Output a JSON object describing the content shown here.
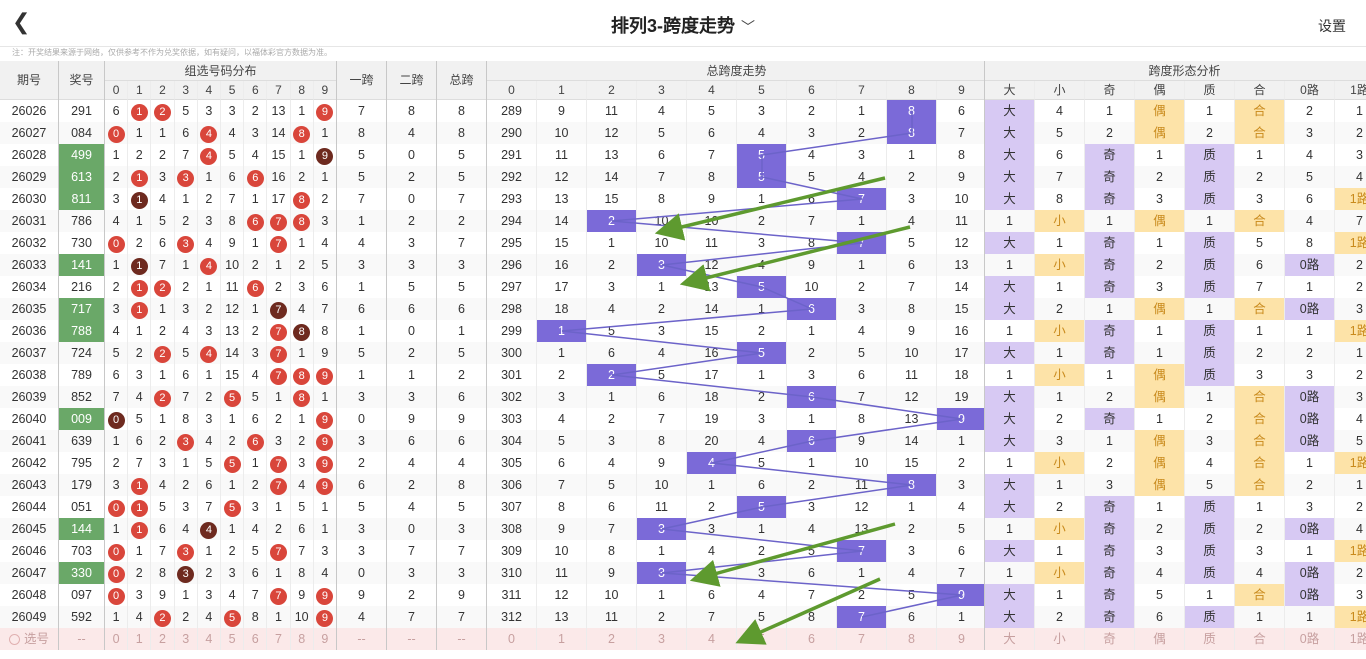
{
  "header": {
    "back_icon": "back-chevron-icon",
    "title": "排列3-跨度走势",
    "title_chevron": "﹀",
    "settings_label": "设置"
  },
  "note": "注：开奖结果来源于网络，仅供参考不作为兑奖依据，如有疑问，以福体彩官方数据为准。",
  "table": {
    "period_label": "期号",
    "award_label": "奖号",
    "digits_group_label": "组选号码分布",
    "digits_header": [
      "0",
      "1",
      "2",
      "3",
      "4",
      "5",
      "6",
      "7",
      "8",
      "9"
    ],
    "kua1_label": "一跨",
    "kua2_label": "二跨",
    "total_label": "总跨",
    "trend_group_label": "总跨度走势",
    "trend_header": [
      "0",
      "1",
      "2",
      "3",
      "4",
      "5",
      "6",
      "7",
      "8",
      "9"
    ],
    "shape_group_label": "跨度形态分析",
    "shape_header": [
      "大",
      "小",
      "奇",
      "偶",
      "质",
      "合",
      "0路",
      "1路"
    ],
    "select_label": "选号",
    "select_dash": "--",
    "select_digits": [
      "0",
      "1",
      "2",
      "3",
      "4",
      "5",
      "6",
      "7",
      "8",
      "9"
    ],
    "select_trend": [
      "0",
      "1",
      "2",
      "3",
      "4",
      "5",
      "6",
      "7",
      "8",
      "9"
    ],
    "select_shape": [
      "大",
      "小",
      "奇",
      "偶",
      "质",
      "合",
      "0路",
      "1路"
    ],
    "rows": [
      {
        "period": "26026",
        "award": "291",
        "award_hl": false,
        "digits": [
          "6",
          "1",
          "2",
          "5",
          "3",
          "3",
          "2",
          "13",
          "1",
          "9"
        ],
        "balls": [
          1,
          2,
          9
        ],
        "ball_dark": [],
        "k1": "7",
        "k2": "8",
        "kt": "8",
        "trend": [
          "289",
          "9",
          "11",
          "4",
          "5",
          "3",
          "2",
          "1",
          "8",
          "6"
        ],
        "shape": [
          "大",
          "4",
          "1",
          "偶",
          "1",
          "合",
          "2",
          "1"
        ]
      },
      {
        "period": "26027",
        "award": "084",
        "award_hl": false,
        "digits": [
          "0",
          "1",
          "1",
          "6",
          "4",
          "4",
          "3",
          "14",
          "8",
          "1"
        ],
        "balls": [
          0,
          4,
          8
        ],
        "ball_dark": [],
        "k1": "8",
        "k2": "4",
        "kt": "8",
        "trend": [
          "290",
          "10",
          "12",
          "5",
          "6",
          "4",
          "3",
          "2",
          "8",
          "7"
        ],
        "shape": [
          "大",
          "5",
          "2",
          "偶",
          "2",
          "合",
          "3",
          "2"
        ]
      },
      {
        "period": "26028",
        "award": "499",
        "award_hl": true,
        "digits": [
          "1",
          "2",
          "2",
          "7",
          "4",
          "5",
          "4",
          "15",
          "1",
          "9"
        ],
        "balls": [
          4,
          9
        ],
        "ball_dark": [
          9
        ],
        "k1": "5",
        "k2": "0",
        "kt": "5",
        "trend": [
          "291",
          "11",
          "13",
          "6",
          "7",
          "5",
          "4",
          "3",
          "1",
          "8"
        ],
        "shape": [
          "大",
          "6",
          "奇",
          "1",
          "质",
          "1",
          "4",
          "3"
        ]
      },
      {
        "period": "26029",
        "award": "613",
        "award_hl": true,
        "digits": [
          "2",
          "1",
          "3",
          "3",
          "1",
          "6",
          "6",
          "16",
          "2",
          "1"
        ],
        "balls": [
          1,
          3,
          6
        ],
        "ball_dark": [],
        "k1": "5",
        "k2": "2",
        "kt": "5",
        "trend": [
          "292",
          "12",
          "14",
          "7",
          "8",
          "5",
          "5",
          "4",
          "2",
          "9"
        ],
        "shape": [
          "大",
          "7",
          "奇",
          "2",
          "质",
          "2",
          "5",
          "4"
        ]
      },
      {
        "period": "26030",
        "award": "811",
        "award_hl": true,
        "digits": [
          "3",
          "1",
          "4",
          "1",
          "2",
          "7",
          "1",
          "17",
          "8",
          "2"
        ],
        "balls": [
          1,
          8
        ],
        "ball_dark": [
          1
        ],
        "k1": "7",
        "k2": "0",
        "kt": "7",
        "trend": [
          "293",
          "13",
          "15",
          "8",
          "9",
          "1",
          "6",
          "7",
          "3",
          "10"
        ],
        "shape": [
          "大",
          "8",
          "奇",
          "3",
          "质",
          "3",
          "6",
          "1路"
        ]
      },
      {
        "period": "26031",
        "award": "786",
        "award_hl": false,
        "digits": [
          "4",
          "1",
          "5",
          "2",
          "3",
          "8",
          "6",
          "7",
          "8",
          "3"
        ],
        "balls": [
          6,
          7,
          8
        ],
        "ball_dark": [],
        "k1": "1",
        "k2": "2",
        "kt": "2",
        "trend": [
          "294",
          "14",
          "2",
          "10",
          "10",
          "2",
          "7",
          "1",
          "4",
          "11"
        ],
        "shape": [
          "1",
          "小",
          "1",
          "偶",
          "1",
          "合",
          "4",
          "7"
        ]
      },
      {
        "period": "26032",
        "award": "730",
        "award_hl": false,
        "digits": [
          "0",
          "2",
          "6",
          "3",
          "4",
          "9",
          "1",
          "7",
          "1",
          "4"
        ],
        "balls": [
          0,
          3,
          7
        ],
        "ball_dark": [],
        "k1": "4",
        "k2": "3",
        "kt": "7",
        "trend": [
          "295",
          "15",
          "1",
          "10",
          "11",
          "3",
          "8",
          "7",
          "5",
          "12"
        ],
        "shape": [
          "大",
          "1",
          "奇",
          "1",
          "质",
          "5",
          "8",
          "1路"
        ]
      },
      {
        "period": "26033",
        "award": "141",
        "award_hl": true,
        "digits": [
          "1",
          "1",
          "7",
          "1",
          "4",
          "10",
          "2",
          "1",
          "2",
          "5"
        ],
        "balls": [
          1,
          4
        ],
        "ball_dark": [
          1
        ],
        "k1": "3",
        "k2": "3",
        "kt": "3",
        "trend": [
          "296",
          "16",
          "2",
          "3",
          "12",
          "4",
          "9",
          "1",
          "6",
          "13"
        ],
        "shape": [
          "1",
          "小",
          "奇",
          "2",
          "质",
          "6",
          "0路",
          "2"
        ]
      },
      {
        "period": "26034",
        "award": "216",
        "award_hl": false,
        "digits": [
          "2",
          "1",
          "2",
          "2",
          "1",
          "11",
          "6",
          "2",
          "3",
          "6"
        ],
        "balls": [
          1,
          2,
          6
        ],
        "ball_dark": [],
        "k1": "1",
        "k2": "5",
        "kt": "5",
        "trend": [
          "297",
          "17",
          "3",
          "1",
          "13",
          "5",
          "10",
          "2",
          "7",
          "14"
        ],
        "shape": [
          "大",
          "1",
          "奇",
          "3",
          "质",
          "7",
          "1",
          "2"
        ]
      },
      {
        "period": "26035",
        "award": "717",
        "award_hl": true,
        "digits": [
          "3",
          "1",
          "1",
          "3",
          "2",
          "12",
          "1",
          "7",
          "4",
          "7"
        ],
        "balls": [
          1,
          7
        ],
        "ball_dark": [
          7
        ],
        "k1": "6",
        "k2": "6",
        "kt": "6",
        "trend": [
          "298",
          "18",
          "4",
          "2",
          "14",
          "1",
          "6",
          "3",
          "8",
          "15"
        ],
        "shape": [
          "大",
          "2",
          "1",
          "偶",
          "1",
          "合",
          "0路",
          "3"
        ]
      },
      {
        "period": "26036",
        "award": "788",
        "award_hl": true,
        "digits": [
          "4",
          "1",
          "2",
          "4",
          "3",
          "13",
          "2",
          "7",
          "8",
          "8"
        ],
        "balls": [
          7,
          8
        ],
        "ball_dark": [
          8
        ],
        "k1": "1",
        "k2": "0",
        "kt": "1",
        "trend": [
          "299",
          "1",
          "5",
          "3",
          "15",
          "2",
          "1",
          "4",
          "9",
          "16"
        ],
        "shape": [
          "1",
          "小",
          "奇",
          "1",
          "质",
          "1",
          "1",
          "1路"
        ]
      },
      {
        "period": "26037",
        "award": "724",
        "award_hl": false,
        "digits": [
          "5",
          "2",
          "2",
          "5",
          "4",
          "14",
          "3",
          "7",
          "1",
          "9"
        ],
        "balls": [
          2,
          4,
          7
        ],
        "ball_dark": [],
        "k1": "5",
        "k2": "2",
        "kt": "5",
        "trend": [
          "300",
          "1",
          "6",
          "4",
          "16",
          "5",
          "2",
          "5",
          "10",
          "17"
        ],
        "shape": [
          "大",
          "1",
          "奇",
          "1",
          "质",
          "2",
          "2",
          "1"
        ]
      },
      {
        "period": "26038",
        "award": "789",
        "award_hl": false,
        "digits": [
          "6",
          "3",
          "1",
          "6",
          "1",
          "15",
          "4",
          "7",
          "8",
          "9"
        ],
        "balls": [
          7,
          8,
          9
        ],
        "ball_dark": [],
        "k1": "1",
        "k2": "1",
        "kt": "2",
        "trend": [
          "301",
          "2",
          "2",
          "5",
          "17",
          "1",
          "3",
          "6",
          "11",
          "18"
        ],
        "shape": [
          "1",
          "小",
          "1",
          "偶",
          "质",
          "3",
          "3",
          "2"
        ]
      },
      {
        "period": "26039",
        "award": "852",
        "award_hl": false,
        "digits": [
          "7",
          "4",
          "2",
          "7",
          "2",
          "5",
          "5",
          "1",
          "8",
          "1"
        ],
        "balls": [
          2,
          5,
          8
        ],
        "ball_dark": [],
        "k1": "3",
        "k2": "3",
        "kt": "6",
        "trend": [
          "302",
          "3",
          "1",
          "6",
          "18",
          "2",
          "6",
          "7",
          "12",
          "19"
        ],
        "shape": [
          "大",
          "1",
          "2",
          "偶",
          "1",
          "合",
          "0路",
          "3"
        ]
      },
      {
        "period": "26040",
        "award": "009",
        "award_hl": true,
        "digits": [
          "0",
          "5",
          "1",
          "8",
          "3",
          "1",
          "6",
          "2",
          "1",
          "9"
        ],
        "balls": [
          0,
          9
        ],
        "ball_dark": [
          0
        ],
        "k1": "0",
        "k2": "9",
        "kt": "9",
        "trend": [
          "303",
          "4",
          "2",
          "7",
          "19",
          "3",
          "1",
          "8",
          "13",
          "9"
        ],
        "shape": [
          "大",
          "2",
          "奇",
          "1",
          "2",
          "合",
          "0路",
          "4"
        ]
      },
      {
        "period": "26041",
        "award": "639",
        "award_hl": false,
        "digits": [
          "1",
          "6",
          "2",
          "3",
          "4",
          "2",
          "6",
          "3",
          "2",
          "9"
        ],
        "balls": [
          3,
          6,
          9
        ],
        "ball_dark": [],
        "k1": "3",
        "k2": "6",
        "kt": "6",
        "trend": [
          "304",
          "5",
          "3",
          "8",
          "20",
          "4",
          "6",
          "9",
          "14",
          "1"
        ],
        "shape": [
          "大",
          "3",
          "1",
          "偶",
          "3",
          "合",
          "0路",
          "5"
        ]
      },
      {
        "period": "26042",
        "award": "795",
        "award_hl": false,
        "digits": [
          "2",
          "7",
          "3",
          "1",
          "5",
          "5",
          "1",
          "7",
          "3",
          "9"
        ],
        "balls": [
          5,
          7,
          9
        ],
        "ball_dark": [],
        "k1": "2",
        "k2": "4",
        "kt": "4",
        "trend": [
          "305",
          "6",
          "4",
          "9",
          "4",
          "5",
          "1",
          "10",
          "15",
          "2"
        ],
        "shape": [
          "1",
          "小",
          "2",
          "偶",
          "4",
          "合",
          "1",
          "1路"
        ]
      },
      {
        "period": "26043",
        "award": "179",
        "award_hl": false,
        "digits": [
          "3",
          "1",
          "4",
          "2",
          "6",
          "1",
          "2",
          "7",
          "4",
          "9"
        ],
        "balls": [
          1,
          7,
          9
        ],
        "ball_dark": [],
        "k1": "6",
        "k2": "2",
        "kt": "8",
        "trend": [
          "306",
          "7",
          "5",
          "10",
          "1",
          "6",
          "2",
          "11",
          "8",
          "3"
        ],
        "shape": [
          "大",
          "1",
          "3",
          "偶",
          "5",
          "合",
          "2",
          "1"
        ]
      },
      {
        "period": "26044",
        "award": "051",
        "award_hl": false,
        "digits": [
          "0",
          "1",
          "5",
          "3",
          "7",
          "5",
          "3",
          "1",
          "5",
          "1"
        ],
        "balls": [
          0,
          1,
          5
        ],
        "ball_dark": [],
        "k1": "5",
        "k2": "4",
        "kt": "5",
        "trend": [
          "307",
          "8",
          "6",
          "11",
          "2",
          "5",
          "3",
          "12",
          "1",
          "4"
        ],
        "shape": [
          "大",
          "2",
          "奇",
          "1",
          "质",
          "1",
          "3",
          "2"
        ]
      },
      {
        "period": "26045",
        "award": "144",
        "award_hl": true,
        "digits": [
          "1",
          "1",
          "6",
          "4",
          "4",
          "1",
          "4",
          "2",
          "6",
          "1"
        ],
        "balls": [
          1,
          4
        ],
        "ball_dark": [
          4
        ],
        "k1": "3",
        "k2": "0",
        "kt": "3",
        "trend": [
          "308",
          "9",
          "7",
          "3",
          "3",
          "1",
          "4",
          "13",
          "2",
          "5"
        ],
        "shape": [
          "1",
          "小",
          "奇",
          "2",
          "质",
          "2",
          "0路",
          "4"
        ]
      },
      {
        "period": "26046",
        "award": "703",
        "award_hl": false,
        "digits": [
          "0",
          "1",
          "7",
          "3",
          "1",
          "2",
          "5",
          "7",
          "7",
          "3"
        ],
        "balls": [
          0,
          3,
          7
        ],
        "ball_dark": [],
        "k1": "3",
        "k2": "7",
        "kt": "7",
        "trend": [
          "309",
          "10",
          "8",
          "1",
          "4",
          "2",
          "5",
          "7",
          "3",
          "6"
        ],
        "shape": [
          "大",
          "1",
          "奇",
          "3",
          "质",
          "3",
          "1",
          "1路"
        ]
      },
      {
        "period": "26047",
        "award": "330",
        "award_hl": true,
        "digits": [
          "0",
          "2",
          "8",
          "3",
          "2",
          "3",
          "6",
          "1",
          "8",
          "4"
        ],
        "balls": [
          0,
          3
        ],
        "ball_dark": [
          3
        ],
        "k1": "0",
        "k2": "3",
        "kt": "3",
        "trend": [
          "310",
          "11",
          "9",
          "3",
          "5",
          "3",
          "6",
          "1",
          "4",
          "7"
        ],
        "shape": [
          "1",
          "小",
          "奇",
          "4",
          "质",
          "4",
          "0路",
          "2"
        ]
      },
      {
        "period": "26048",
        "award": "097",
        "award_hl": false,
        "digits": [
          "0",
          "3",
          "9",
          "1",
          "3",
          "4",
          "7",
          "7",
          "9",
          "9"
        ],
        "balls": [
          0,
          7,
          9
        ],
        "ball_dark": [],
        "k1": "9",
        "k2": "2",
        "kt": "9",
        "trend": [
          "311",
          "12",
          "10",
          "1",
          "6",
          "4",
          "7",
          "2",
          "5",
          "9"
        ],
        "shape": [
          "大",
          "1",
          "奇",
          "5",
          "1",
          "合",
          "0路",
          "3"
        ]
      },
      {
        "period": "26049",
        "award": "592",
        "award_hl": false,
        "digits": [
          "1",
          "4",
          "2",
          "2",
          "4",
          "5",
          "8",
          "1",
          "10",
          "9"
        ],
        "balls": [
          2,
          5,
          9
        ],
        "ball_dark": [],
        "k1": "4",
        "k2": "7",
        "kt": "7",
        "trend": [
          "312",
          "13",
          "11",
          "2",
          "7",
          "5",
          "8",
          "7",
          "6",
          "1"
        ],
        "shape": [
          "大",
          "2",
          "奇",
          "6",
          "质",
          "1",
          "1",
          "1路"
        ]
      }
    ]
  },
  "colors": {
    "highlight": "#7b6ad8",
    "ball_red": "#d9463b",
    "ball_dark": "#6e2a1f",
    "award_green": "#6aa868",
    "shape_purple": "#d7c9f3",
    "shape_yellow": "#fde3a8",
    "arrow_green": "#5e9a2f"
  }
}
